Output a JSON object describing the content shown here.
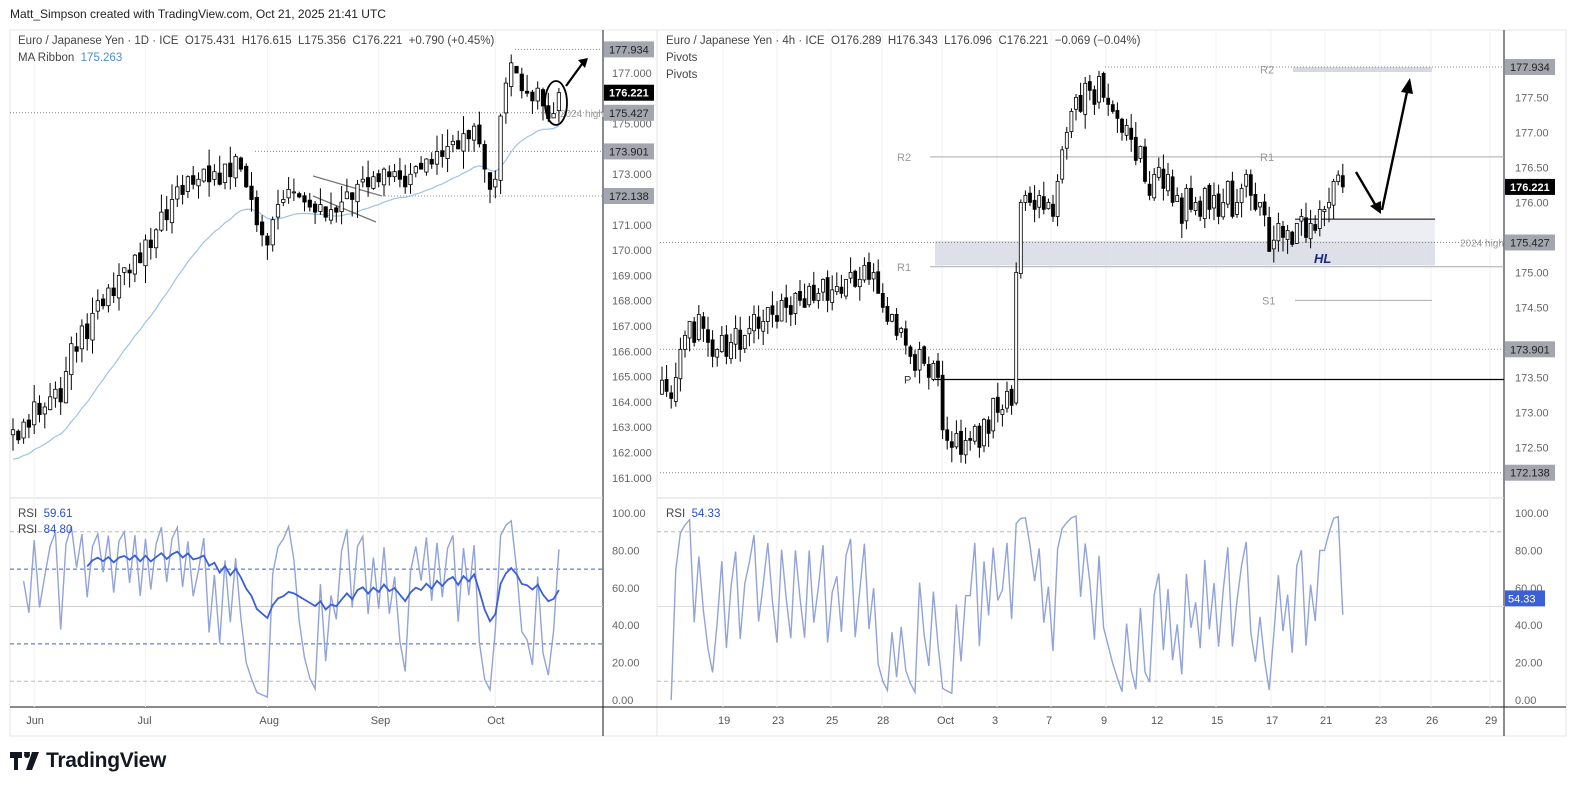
{
  "credit": "Matt_Simpson created with TradingView.com, Oct 21, 2025 21:41 UTC",
  "brand": "TradingView",
  "left_panel": {
    "symbol": "Euro / Japanese Yen · 1D · ICE",
    "open": "O175.431",
    "high": "H176.615",
    "low": "L175.356",
    "close": "C176.221",
    "change": "+0.790 (+0.45%)",
    "ma_label": "MA Ribbon",
    "ma_value": "175.263",
    "rsi1_label": "RSI",
    "rsi1_value": "59.61",
    "rsi2_label": "RSI",
    "rsi2_value": "84.80",
    "annotation_2024": "2024 high"
  },
  "right_panel": {
    "symbol": "Euro / Japanese Yen · 4h · ICE",
    "open": "O176.289",
    "high": "H176.343",
    "low": "L176.096",
    "close": "C176.221",
    "change": "−0.069 (−0.04%)",
    "pivots1": "Pivots",
    "pivots2": "Pivots",
    "rsi_label": "RSI",
    "rsi_value": "54.33",
    "annotation_2024": "2024 high",
    "hl_label": "HL",
    "pivot_labels": {
      "prev_r2": "R2",
      "prev_r1": "R1",
      "p": "P",
      "r2": "R2",
      "r1": "R1",
      "s1": "S1"
    }
  },
  "colors": {
    "rsi_main": "#3b5fd6",
    "rsi_fast": "#91a3d8",
    "ma": "#9cc3e8",
    "bull": "#ffffff",
    "bear": "#000000",
    "label_bg": "#a3a6af",
    "hl": "#1a2a7a"
  },
  "chart_data": [
    {
      "type": "candlestick",
      "title": "Euro / Japanese Yen · 1D · ICE",
      "interval": "1D",
      "x_tick_labels": [
        "Jun",
        "Jul",
        "Aug",
        "Sep",
        "Oct"
      ],
      "y_tick_labels": [
        "177.000",
        "175.000",
        "173.000",
        "171.000",
        "170.000",
        "169.000",
        "168.000",
        "167.000",
        "166.000",
        "165.000",
        "164.000",
        "163.000",
        "162.000",
        "161.000"
      ],
      "price_labels": [
        {
          "value": "177.934",
          "type": "level"
        },
        {
          "value": "176.221",
          "type": "last"
        },
        {
          "value": "175.427",
          "type": "level"
        },
        {
          "value": "173.901",
          "type": "level"
        },
        {
          "value": "172.138",
          "type": "level"
        }
      ],
      "closes": [
        162.9,
        162.5,
        163.2,
        163.0,
        164.0,
        163.5,
        163.8,
        164.2,
        164.5,
        164.0,
        165.2,
        166.3,
        166.0,
        167.0,
        166.5,
        167.5,
        168.0,
        167.8,
        168.5,
        168.2,
        169.0,
        169.3,
        169.1,
        169.8,
        169.5,
        170.4,
        170.1,
        170.8,
        171.5,
        171.2,
        172.0,
        172.5,
        172.2,
        172.9,
        172.6,
        172.8,
        173.2,
        172.7,
        173.1,
        172.6,
        173.4,
        172.9,
        173.7,
        173.2,
        172.5,
        172.0,
        171.0,
        170.6,
        170.2,
        171.2,
        171.8,
        172.0,
        172.4,
        172.3,
        172.1,
        171.9,
        171.7,
        171.5,
        171.8,
        171.3,
        171.6,
        171.5,
        171.9,
        172.3,
        172.0,
        172.6,
        172.8,
        172.5,
        172.9,
        172.7,
        173.2,
        172.9,
        173.1,
        172.8,
        172.5,
        173.0,
        173.3,
        173.2,
        173.6,
        173.4,
        173.9,
        173.7,
        174.1,
        174.3,
        174.0,
        174.6,
        174.4,
        174.9,
        174.2,
        173.2,
        172.4,
        172.8,
        175.3,
        176.6,
        177.4,
        177.0,
        176.3,
        176.2,
        175.9,
        176.4,
        175.7,
        175.2,
        175.4,
        176.221
      ],
      "rsi": {
        "y_tick_labels": [
          "100.00",
          "80.00",
          "60.00",
          "40.00",
          "20.00",
          "0.00"
        ],
        "levels": [
          90,
          70,
          50,
          30,
          10
        ],
        "ylim": [
          0,
          100
        ]
      }
    },
    {
      "type": "candlestick",
      "title": "Euro / Japanese Yen · 4h · ICE",
      "interval": "4h",
      "x_tick_labels": [
        "19",
        "23",
        "25",
        "28",
        "Oct",
        "3",
        "7",
        "9",
        "12",
        "15",
        "17",
        "21",
        "23",
        "26",
        "29"
      ],
      "y_tick_labels": [
        "177.50",
        "177.00",
        "176.50",
        "176.00",
        "175.00",
        "174.50",
        "173.50",
        "173.00",
        "172.50"
      ],
      "price_labels": [
        {
          "value": "177.934",
          "type": "level"
        },
        {
          "value": "176.221",
          "type": "last"
        },
        {
          "value": "175.427",
          "type": "level"
        },
        {
          "value": "173.901",
          "type": "level"
        },
        {
          "value": "172.138",
          "type": "level"
        }
      ],
      "pivots": {
        "prev_r2": 176.65,
        "prev_r1": 175.08,
        "p": 173.47,
        "r2": 177.9,
        "r1": 176.65,
        "s1": 174.6
      },
      "zone": [
        175.1,
        175.45
      ],
      "closes": [
        173.46,
        173.3,
        173.2,
        173.5,
        173.9,
        174.1,
        174.3,
        174.0,
        174.4,
        174.2,
        174.0,
        173.8,
        173.9,
        174.1,
        173.8,
        174.0,
        174.2,
        173.9,
        174.1,
        174.2,
        174.4,
        174.2,
        174.3,
        174.5,
        174.4,
        174.3,
        174.6,
        174.5,
        174.4,
        174.7,
        174.6,
        174.5,
        174.8,
        174.6,
        174.7,
        174.9,
        174.6,
        174.75,
        174.8,
        174.7,
        174.9,
        175.0,
        174.8,
        174.9,
        175.1,
        174.9,
        175.0,
        174.7,
        174.5,
        174.3,
        174.4,
        174.1,
        174.2,
        173.96,
        173.8,
        173.6,
        173.9,
        173.7,
        173.5,
        173.7,
        173.5,
        172.75,
        172.6,
        172.5,
        172.7,
        172.4,
        172.6,
        172.6,
        172.8,
        172.5,
        172.9,
        172.7,
        173.2,
        173.0,
        173.04,
        173.3,
        173.1,
        175.0,
        176.0,
        176.1,
        176.0,
        175.9,
        176.1,
        175.9,
        176.0,
        175.8,
        176.3,
        176.75,
        177.0,
        177.3,
        177.5,
        177.3,
        177.7,
        177.6,
        177.4,
        177.8,
        177.5,
        177.4,
        177.3,
        177.2,
        177.0,
        177.1,
        176.9,
        176.6,
        176.8,
        176.3,
        176.1,
        176.4,
        176.5,
        176.2,
        176.4,
        176.0,
        176.1,
        175.7,
        176.2,
        175.9,
        176.0,
        175.8,
        176.2,
        175.9,
        176.1,
        175.8,
        176.0,
        176.3,
        175.8,
        176.0,
        176.2,
        176.4,
        176.1,
        175.9,
        176.0,
        175.82,
        175.3,
        175.46,
        175.7,
        175.5,
        175.6,
        175.4,
        175.7,
        175.8,
        175.5,
        175.7,
        175.6,
        175.9,
        175.9,
        176.0,
        176.3,
        176.39,
        176.221
      ],
      "rsi": {
        "y_tick_labels": [
          "100.00",
          "80.00",
          "60.00",
          "40.00",
          "20.00",
          "0.00"
        ],
        "levels": [
          90,
          50,
          10
        ],
        "ylim": [
          0,
          100
        ],
        "last_label": "54.33"
      }
    }
  ]
}
